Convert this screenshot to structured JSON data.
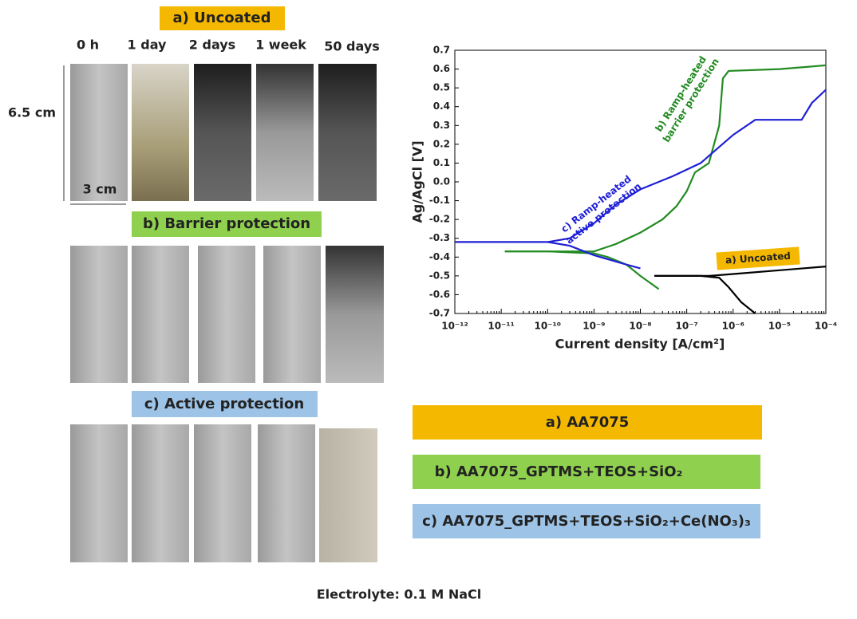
{
  "section_titles": [
    "a) Uncoated",
    "b) Barrier protection",
    "c) Active protection"
  ],
  "times": [
    "0 h",
    "1 day",
    "2 days",
    "1 week",
    "50 days"
  ],
  "dimensions": {
    "height": "6.5 cm",
    "width": "3 cm"
  },
  "legend_boxes": [
    "a) AA7075",
    "b) AA7075_GPTMS+TEOS+SiO₂",
    "c) AA7075_GPTMS+TEOS+SiO₂+Ce(NO₃)₃"
  ],
  "footer": "Electrolyte: 0.1 M NaCl",
  "chart_data": {
    "type": "line",
    "x_label": "Current density  [A/cm²]",
    "y_label": "Ag/AgCl [V]",
    "xscale": "log",
    "xlim": [
      1e-12,
      0.0001
    ],
    "xticks": [
      {
        "value": 1e-12,
        "label": "10⁻¹²"
      },
      {
        "value": 1e-11,
        "label": "10⁻¹¹"
      },
      {
        "value": 1e-10,
        "label": "10⁻¹⁰"
      },
      {
        "value": 1e-09,
        "label": "10⁻⁹"
      },
      {
        "value": 1e-08,
        "label": "10⁻⁸"
      },
      {
        "value": 1e-07,
        "label": "10⁻⁷"
      },
      {
        "value": 1e-06,
        "label": "10⁻⁶"
      },
      {
        "value": 1e-05,
        "label": "10⁻⁵"
      },
      {
        "value": 0.0001,
        "label": "10⁻⁴"
      }
    ],
    "ylim": [
      -0.7,
      0.7
    ],
    "yticks": [
      -0.7,
      -0.6,
      -0.5,
      -0.4,
      -0.3,
      -0.2,
      -0.1,
      {
        "value": 0,
        "label": "0.0"
      },
      0.1,
      0.2,
      0.3,
      0.4,
      0.5,
      0.6,
      0.7
    ],
    "series": [
      {
        "color": "#000000",
        "x": [
          3e-06,
          1.5e-06,
          8e-07,
          5e-07,
          2e-07,
          2e-08,
          null,
          2e-08,
          3e-07,
          1e-06,
          1e-05,
          0.0001
        ],
        "values": [
          -0.7,
          -0.64,
          -0.56,
          -0.51,
          -0.5,
          -0.5,
          null,
          -0.5,
          -0.5,
          -0.49,
          -0.47,
          -0.45
        ]
      },
      {
        "color": "#228b22",
        "x": [
          2.5e-08,
          1e-08,
          5e-09,
          2e-09,
          1e-09,
          1e-10,
          1.2e-11,
          null,
          1.2e-11,
          1e-09,
          3e-09,
          1e-08,
          3e-08,
          6e-08,
          1e-07,
          1.5e-07,
          3e-07,
          5e-07,
          6e-07,
          8e-07,
          1e-05,
          0.0001
        ],
        "values": [
          -0.57,
          -0.5,
          -0.44,
          -0.4,
          -0.38,
          -0.37,
          -0.37,
          null,
          -0.37,
          -0.37,
          -0.33,
          -0.27,
          -0.2,
          -0.13,
          -0.05,
          0.05,
          0.1,
          0.3,
          0.55,
          0.59,
          0.6,
          0.62
        ]
      },
      {
        "color": "#1f1fd6",
        "x": [
          1e-08,
          5e-09,
          1e-09,
          3e-10,
          1e-10,
          1e-12,
          null,
          1e-10,
          3e-10,
          1e-09,
          3e-09,
          1e-08,
          5e-08,
          2e-07,
          1e-06,
          3e-06,
          3e-05,
          5e-05,
          0.0001
        ],
        "values": [
          -0.46,
          -0.44,
          -0.39,
          -0.34,
          -0.32,
          -0.32,
          null,
          -0.32,
          -0.3,
          -0.22,
          -0.12,
          -0.04,
          0.03,
          0.1,
          0.25,
          0.33,
          0.33,
          0.42,
          0.49
        ]
      }
    ],
    "annotations": [
      {
        "lines": [
          "a) Uncoated"
        ],
        "color": "#222222",
        "box": "#f5b800"
      },
      {
        "lines": [
          "b) Ramp-heated",
          "barrier protection"
        ],
        "color": "#228b22"
      },
      {
        "lines": [
          "c) Ramp-heated",
          "active protection"
        ],
        "color": "#1f1fd6"
      }
    ]
  }
}
